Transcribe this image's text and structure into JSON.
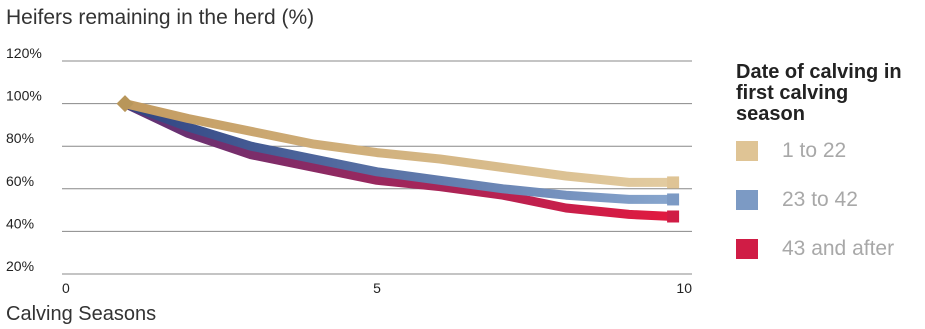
{
  "chart_data": {
    "type": "line",
    "title": "Heifers remaining in the herd (%)",
    "xlabel": "Calving Seasons",
    "ylabel": "",
    "xlim": [
      0,
      10
    ],
    "ylim": [
      20,
      120
    ],
    "x_ticks": [
      "0",
      "5",
      "10"
    ],
    "x_tick_values": [
      0,
      5,
      10
    ],
    "y_ticks": [
      "20%",
      "40%",
      "60%",
      "80%",
      "100%",
      "120%"
    ],
    "y_tick_values": [
      20,
      40,
      60,
      80,
      100,
      120
    ],
    "grid": true,
    "legend_position": "right",
    "legend_title": "Date of calving in first calving season",
    "series": [
      {
        "name": "1 to 22",
        "color": "#dfc495",
        "x": [
          1,
          2,
          3,
          4,
          5,
          6,
          7,
          8,
          9,
          9.7
        ],
        "y": [
          100,
          93,
          87,
          81,
          77,
          74,
          70,
          66,
          63,
          63
        ]
      },
      {
        "name": "23 to 42",
        "color": "#7c9ac4",
        "x": [
          1,
          2,
          3,
          4,
          5,
          6,
          7,
          8,
          9,
          9.7
        ],
        "y": [
          100,
          89,
          80,
          74,
          68,
          64,
          60,
          57,
          55,
          55
        ]
      },
      {
        "name": "43 and after",
        "color": "#d01c45",
        "x": [
          1,
          2,
          3,
          4,
          5,
          6,
          7,
          8,
          9,
          9.7
        ],
        "y": [
          100,
          86,
          76,
          70,
          64,
          61,
          57,
          51,
          48,
          47
        ]
      }
    ]
  }
}
